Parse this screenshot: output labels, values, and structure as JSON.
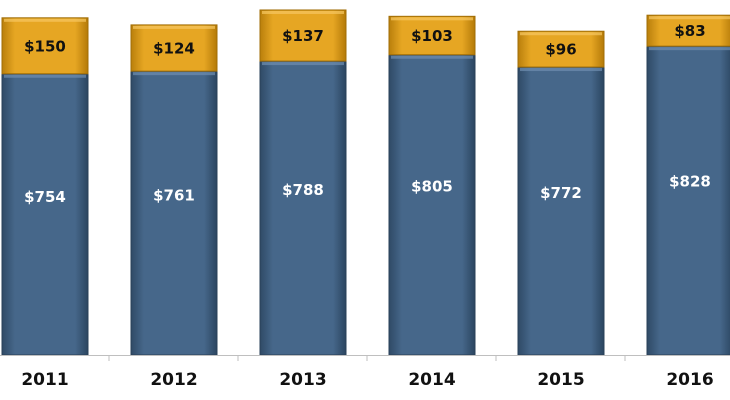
{
  "colors": {
    "bottom_series": "#3f5f7f",
    "top_series": "#e3a21a",
    "bottom_label": "#ffffff",
    "top_label": "#111111",
    "axis": "#bfbfbf"
  },
  "chart_data": {
    "type": "bar",
    "stacked": true,
    "categories": [
      "2011",
      "2012",
      "2013",
      "2014",
      "2015",
      "2016"
    ],
    "series": [
      {
        "values": [
          754,
          761,
          788,
          805,
          772,
          828
        ],
        "labels": [
          "$754",
          "$761",
          "$788",
          "$805",
          "$772",
          "$828"
        ]
      },
      {
        "values": [
          150,
          124,
          137,
          103,
          96,
          83
        ],
        "labels": [
          "$150",
          "$124",
          "$137",
          "$103",
          "$96",
          "$83"
        ]
      }
    ],
    "title": "",
    "xlabel": "",
    "ylabel": "",
    "grid": false,
    "legend": "none"
  }
}
